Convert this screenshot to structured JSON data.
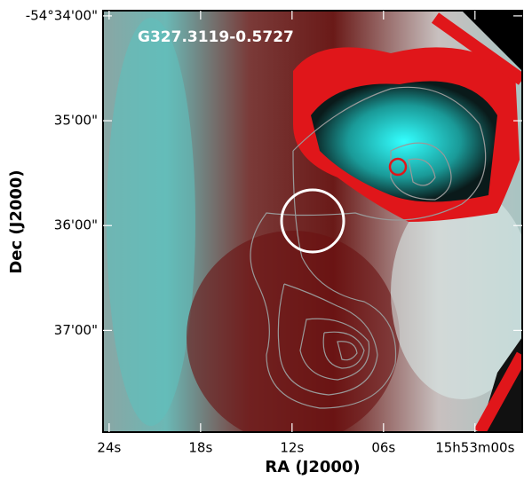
{
  "chart_data": {
    "type": "image",
    "annotation": "G327.3119-0.5727",
    "xlabel": "RA (J2000)",
    "ylabel": "Dec (J2000)",
    "xlim": [
      24.4,
      -3.1
    ],
    "xticks": [
      {
        "value": 24,
        "label": "24s"
      },
      {
        "value": 18,
        "label": "18s"
      },
      {
        "value": 12,
        "label": "12s"
      },
      {
        "value": 6,
        "label": "06s"
      },
      {
        "value": 0,
        "label": "15h53m00s"
      }
    ],
    "ylim": [
      -37.97,
      -33.95
    ],
    "yticks": [
      {
        "value": -34,
        "label": "-54°34'00\""
      },
      {
        "value": -35,
        "label": "35'00\""
      },
      {
        "value": -36,
        "label": "36'00\""
      },
      {
        "value": -37,
        "label": "37'00\""
      }
    ]
  }
}
